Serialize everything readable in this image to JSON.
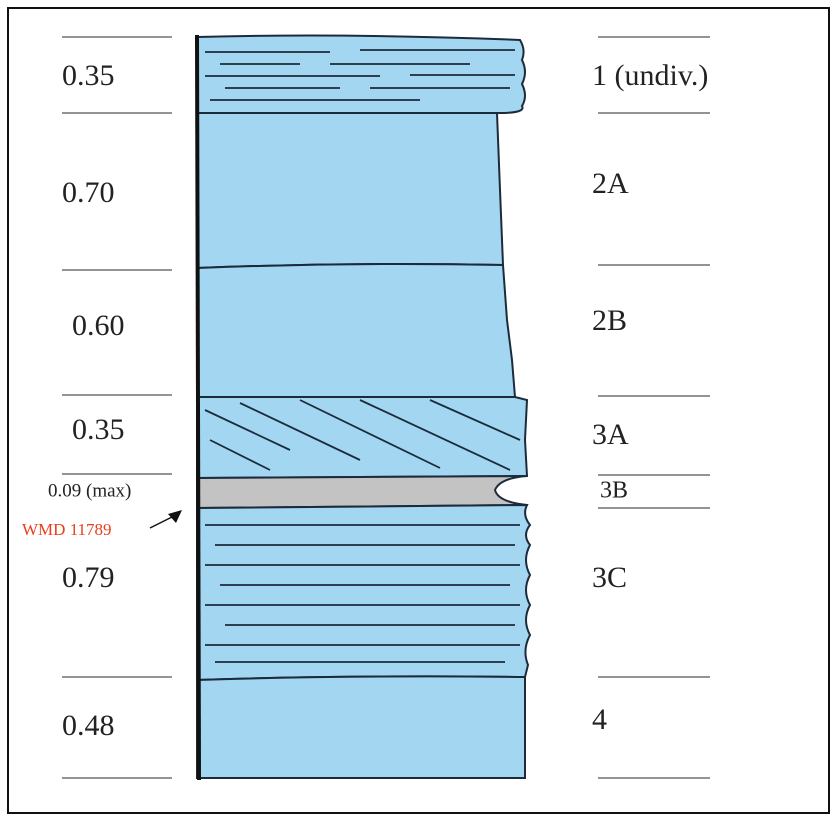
{
  "layers": [
    {
      "thickness": "0.35",
      "unit": "1 (undiv.)"
    },
    {
      "thickness": "0.70",
      "unit": "2A"
    },
    {
      "thickness": "0.60",
      "unit": "2B"
    },
    {
      "thickness": "0.35",
      "unit": "3A"
    },
    {
      "thickness": "0.09 (max)",
      "unit": "3B"
    },
    {
      "thickness": "0.79",
      "unit": "3C"
    },
    {
      "thickness": "0.48",
      "unit": "4"
    }
  ],
  "annotation": "WMD 11789"
}
